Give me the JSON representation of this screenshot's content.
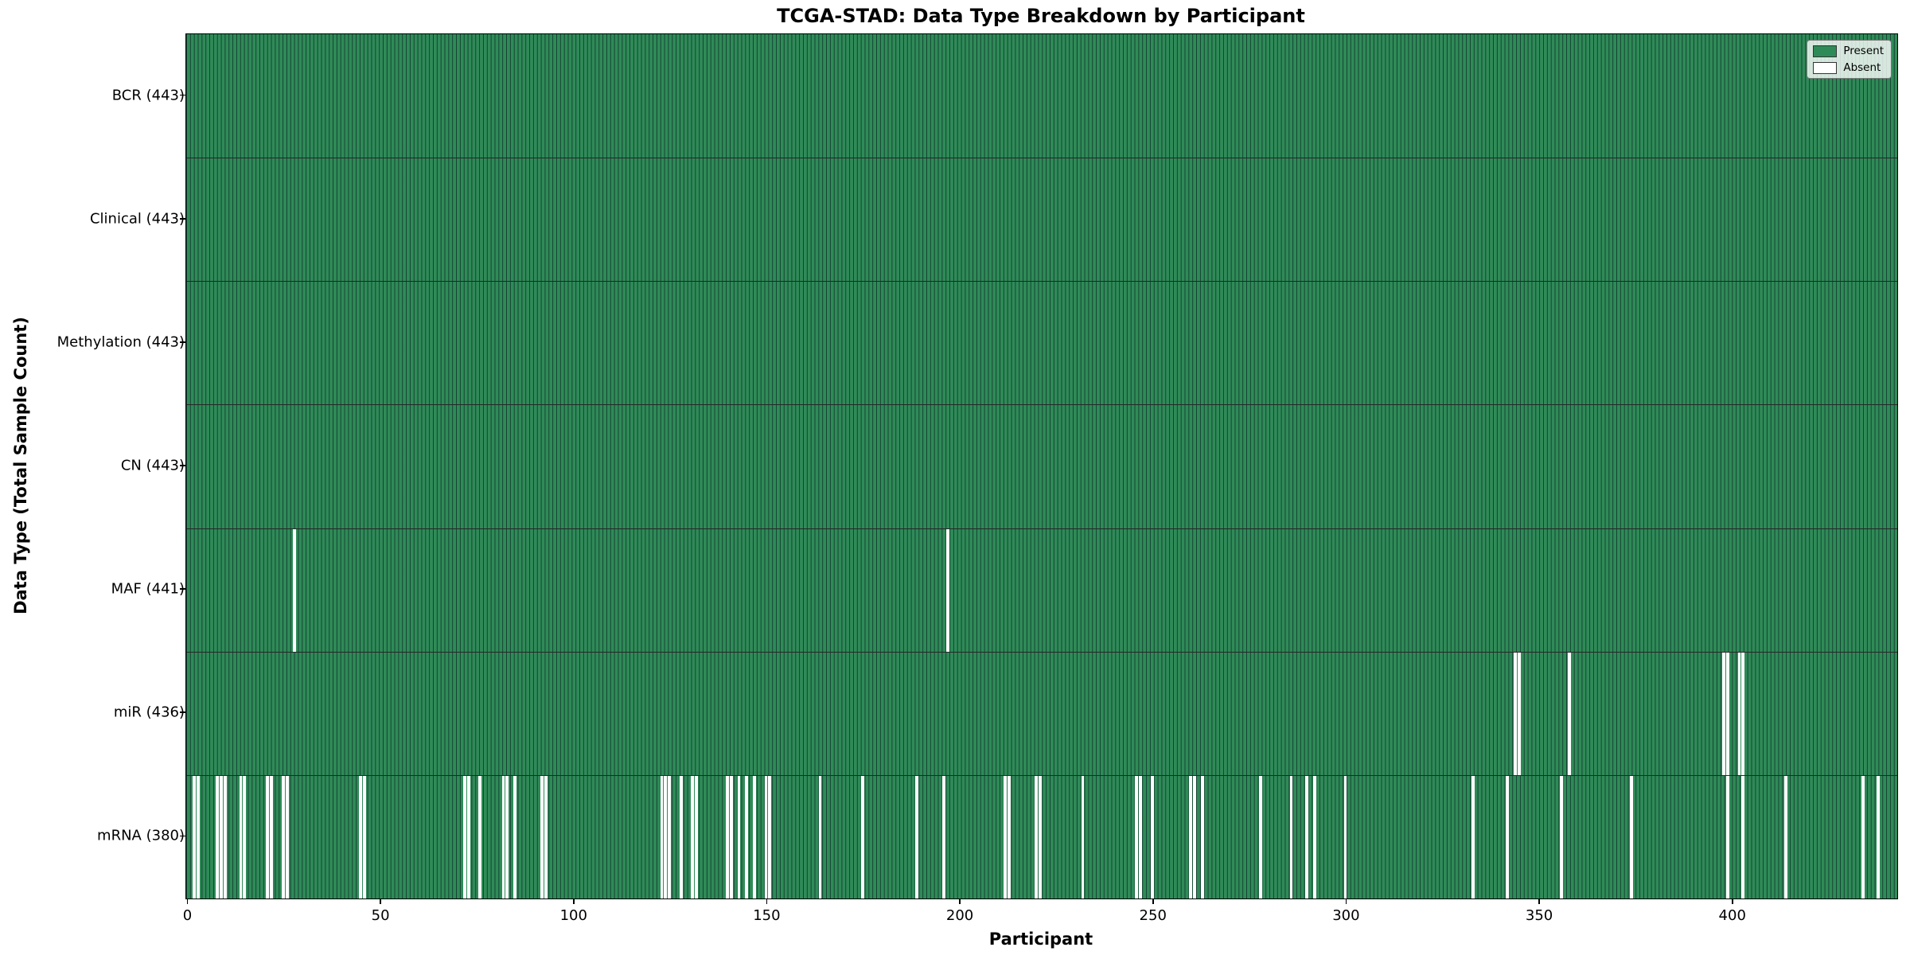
{
  "chart_data": {
    "type": "heatmap",
    "title": "TCGA-STAD: Data Type Breakdown by Participant",
    "xlabel": "Participant",
    "ylabel": "Data Type (Total Sample Count)",
    "legend_labels": [
      "Present",
      "Absent"
    ],
    "legend_position": "upper right",
    "colors": {
      "present": "#2e8b57",
      "absent": "#ffffff"
    },
    "total_participants": 443,
    "xlim": [
      -0.5,
      442.5
    ],
    "xticks": [
      0,
      50,
      100,
      150,
      200,
      250,
      300,
      350,
      400
    ],
    "grid": false,
    "rows": [
      {
        "label": "BCR (443)",
        "name": "BCR",
        "present_count": 443,
        "absent_participants": []
      },
      {
        "label": "Clinical (443)",
        "name": "Clinical",
        "present_count": 443,
        "absent_participants": []
      },
      {
        "label": "Methylation (443)",
        "name": "Methylation",
        "present_count": 443,
        "absent_participants": []
      },
      {
        "label": "CN (443)",
        "name": "CN",
        "present_count": 443,
        "absent_participants": []
      },
      {
        "label": "MAF (441)",
        "name": "MAF",
        "present_count": 441,
        "absent_participants": [
          28,
          197
        ]
      },
      {
        "label": "miR (436)",
        "name": "miR",
        "present_count": 436,
        "absent_participants": [
          344,
          345,
          358,
          398,
          399,
          402,
          403
        ]
      },
      {
        "label": "mRNA (380)",
        "name": "mRNA",
        "present_count": 380,
        "absent_participants": [
          2,
          3,
          8,
          9,
          10,
          14,
          15,
          21,
          22,
          25,
          26,
          45,
          46,
          72,
          73,
          76,
          82,
          83,
          85,
          92,
          93,
          123,
          124,
          125,
          128,
          131,
          132,
          140,
          141,
          143,
          145,
          147,
          150,
          151,
          164,
          175,
          189,
          196,
          212,
          213,
          220,
          221,
          232,
          246,
          247,
          250,
          260,
          261,
          263,
          278,
          286,
          290,
          292,
          300,
          333,
          342,
          356,
          374,
          399,
          403,
          414,
          434,
          438
        ]
      }
    ]
  }
}
